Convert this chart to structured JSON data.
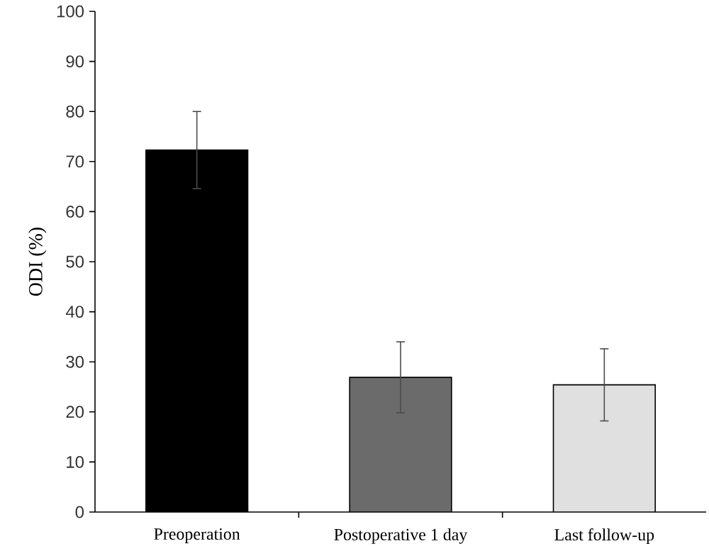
{
  "chart_data": {
    "type": "bar",
    "ylabel": "ODI (%)",
    "categories": [
      "Preoperation",
      "Postoperative 1 day",
      "Last follow-up"
    ],
    "values": [
      72.3,
      26.9,
      25.4
    ],
    "errors": [
      7.7,
      7.1,
      7.2
    ],
    "colors": [
      "#000000",
      "#6b6b6b",
      "#e0e0e0"
    ],
    "ylim": [
      0,
      100
    ],
    "yticks": [
      0,
      10,
      20,
      30,
      40,
      50,
      60,
      70,
      80,
      90,
      100
    ]
  }
}
